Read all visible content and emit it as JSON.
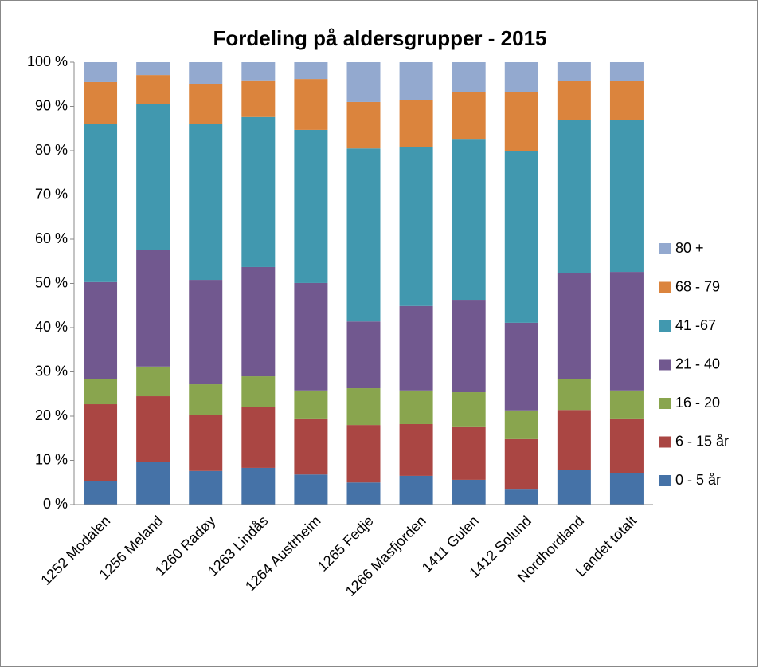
{
  "chart_data": {
    "type": "stacked_bar_percent",
    "title": "Fordeling på aldersgrupper - 2015",
    "categories": [
      "1252 Modalen",
      "1256 Meland",
      "1260 Radøy",
      "1263 Lindås",
      "1264 Austrheim",
      "1265 Fedje",
      "1266 Masfjorden",
      "1411 Gulen",
      "1412 Solund",
      "Nordhordland",
      "Landet totalt"
    ],
    "series": [
      {
        "name": "0 - 5 år",
        "color": "#4572a7",
        "values": [
          5.4,
          9.7,
          7.6,
          8.3,
          6.8,
          5.0,
          6.5,
          5.6,
          3.4,
          7.9,
          7.2
        ]
      },
      {
        "name": "6 - 15 år",
        "color": "#aa4643",
        "values": [
          17.3,
          14.8,
          12.6,
          13.7,
          12.5,
          13.0,
          11.7,
          11.9,
          11.4,
          13.5,
          12.1
        ]
      },
      {
        "name": "16 - 20",
        "color": "#89a54e",
        "values": [
          5.6,
          6.7,
          7.0,
          7.0,
          6.5,
          8.3,
          7.6,
          7.9,
          6.5,
          6.9,
          6.5
        ]
      },
      {
        "name": "21 - 40",
        "color": "#71588f",
        "values": [
          22.0,
          26.3,
          23.6,
          24.7,
          24.3,
          15.1,
          19.1,
          20.9,
          19.8,
          24.1,
          26.8
        ]
      },
      {
        "name": "41 -67",
        "color": "#4198af",
        "values": [
          35.8,
          33.0,
          35.3,
          33.9,
          34.6,
          39.1,
          36.0,
          36.2,
          38.9,
          34.6,
          34.4
        ]
      },
      {
        "name": "68 - 79",
        "color": "#db843d",
        "values": [
          9.4,
          6.6,
          8.9,
          8.3,
          11.5,
          10.5,
          10.5,
          10.8,
          13.3,
          8.7,
          8.7
        ]
      },
      {
        "name": "80 +",
        "color": "#93a9cf",
        "values": [
          4.5,
          2.9,
          5.0,
          4.1,
          3.8,
          9.0,
          8.6,
          6.7,
          6.7,
          4.3,
          4.3
        ]
      }
    ],
    "ylim": [
      0,
      100
    ],
    "yticks": [
      {
        "value": 0,
        "label": "0 %"
      },
      {
        "value": 10,
        "label": "10 %"
      },
      {
        "value": 20,
        "label": "20 %"
      },
      {
        "value": 30,
        "label": "30 %"
      },
      {
        "value": 40,
        "label": "40 %"
      },
      {
        "value": 50,
        "label": "50 %"
      },
      {
        "value": 60,
        "label": "60 %"
      },
      {
        "value": 70,
        "label": "70 %"
      },
      {
        "value": 80,
        "label": "80 %"
      },
      {
        "value": 90,
        "label": "90 %"
      },
      {
        "value": 100,
        "label": "100 %"
      }
    ],
    "legend": "right"
  }
}
